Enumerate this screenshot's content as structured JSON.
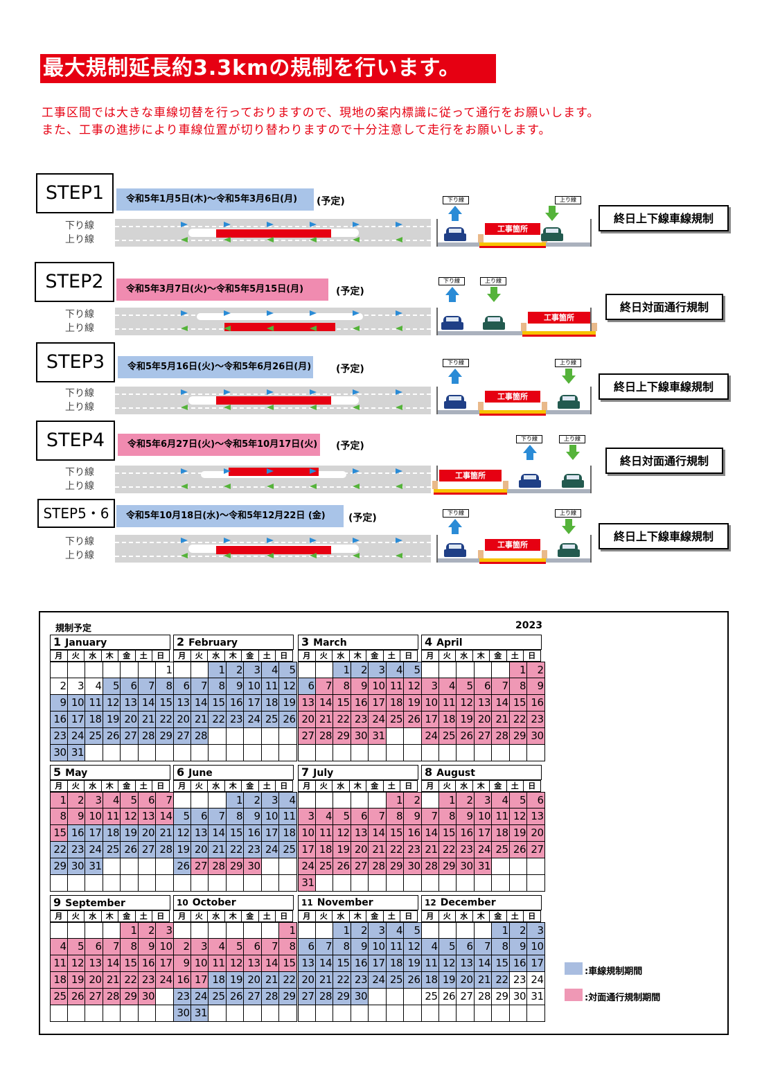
{
  "headline": "最大規制延長約3.3kmの規制を行います。",
  "notice": [
    "工事区間では大きな車線切替を行っておりますので、現地の案内標識に従って通行をお願いします。",
    "また、工事の進捗により車線位置が切り替わりますので十分注意して走行をお願いします。"
  ],
  "lanes": {
    "down": "下り線",
    "up": "上り線"
  },
  "signs": {
    "down": "下り線",
    "up": "上り線"
  },
  "work_site": "工事箇所",
  "steps": [
    {
      "label": "STEP1",
      "dates": "令和5年1月5日(木)～令和5年3月6日(月)",
      "tentative": "(予定)",
      "regulation": "終日上下線車線規制",
      "color": "#a9c4e8"
    },
    {
      "label": "STEP2",
      "dates": "令和5年3月7日(火)～令和5年5月15日(月)",
      "tentative": "(予定)",
      "regulation": "終日対面通行規制",
      "color": "#f08bb0"
    },
    {
      "label": "STEP3",
      "dates": "令和5年5月16日(火)～令和5年6月26日(月)",
      "tentative": "(予定)",
      "regulation": "終日上下線車線規制",
      "color": "#a9c4e8"
    },
    {
      "label": "STEP4",
      "dates": "令和5年6月27日(火)～令和5年10月17日(火)",
      "tentative": "(予定)",
      "regulation": "終日対面通行規制",
      "color": "#f08bb0"
    },
    {
      "label": "STEP5・6",
      "dates": "令和5年10月18日(水)～令和5年12月22日 (金)",
      "tentative": "(予定)",
      "regulation": "終日上下線車線規制",
      "color": "#a9c4e8"
    }
  ],
  "calendar": {
    "title": "規制予定",
    "year": "2023",
    "weekdays": [
      "月",
      "火",
      "水",
      "木",
      "金",
      "土",
      "日"
    ],
    "months": [
      {
        "num": "1",
        "name": "January",
        "offset": 6,
        "days": 31,
        "blue": [
          [
            5,
            31
          ]
        ],
        "pink": []
      },
      {
        "num": "2",
        "name": "February",
        "offset": 2,
        "days": 28,
        "blue": [
          [
            1,
            28
          ]
        ],
        "pink": []
      },
      {
        "num": "3",
        "name": "March",
        "offset": 2,
        "days": 31,
        "blue": [
          [
            1,
            6
          ]
        ],
        "pink": [
          [
            7,
            31
          ]
        ]
      },
      {
        "num": "4",
        "name": "April",
        "offset": 5,
        "days": 30,
        "blue": [],
        "pink": [
          [
            1,
            30
          ]
        ]
      },
      {
        "num": "5",
        "name": "May",
        "offset": 0,
        "days": 31,
        "blue": [
          [
            16,
            31
          ]
        ],
        "pink": [
          [
            1,
            15
          ]
        ]
      },
      {
        "num": "6",
        "name": "June",
        "offset": 3,
        "days": 30,
        "blue": [
          [
            1,
            26
          ]
        ],
        "pink": [
          [
            27,
            30
          ]
        ]
      },
      {
        "num": "7",
        "name": "July",
        "offset": 5,
        "days": 31,
        "blue": [],
        "pink": [
          [
            1,
            31
          ]
        ]
      },
      {
        "num": "8",
        "name": "August",
        "offset": 1,
        "days": 31,
        "blue": [],
        "pink": [
          [
            1,
            31
          ]
        ]
      },
      {
        "num": "9",
        "name": "September",
        "offset": 4,
        "days": 30,
        "blue": [],
        "pink": [
          [
            1,
            30
          ]
        ]
      },
      {
        "num": "10",
        "name": "October",
        "offset": 6,
        "days": 31,
        "blue": [
          [
            18,
            31
          ]
        ],
        "pink": [
          [
            1,
            17
          ]
        ]
      },
      {
        "num": "11",
        "name": "November",
        "offset": 2,
        "days": 30,
        "blue": [
          [
            1,
            30
          ]
        ],
        "pink": []
      },
      {
        "num": "12",
        "name": "December",
        "offset": 4,
        "days": 31,
        "blue": [
          [
            1,
            22
          ]
        ],
        "pink": []
      }
    ]
  },
  "legend": [
    {
      "label": ":車線規制期間",
      "color": "#a9bde0"
    },
    {
      "label": ":対面通行規制期間",
      "color": "#ef98b5"
    }
  ]
}
